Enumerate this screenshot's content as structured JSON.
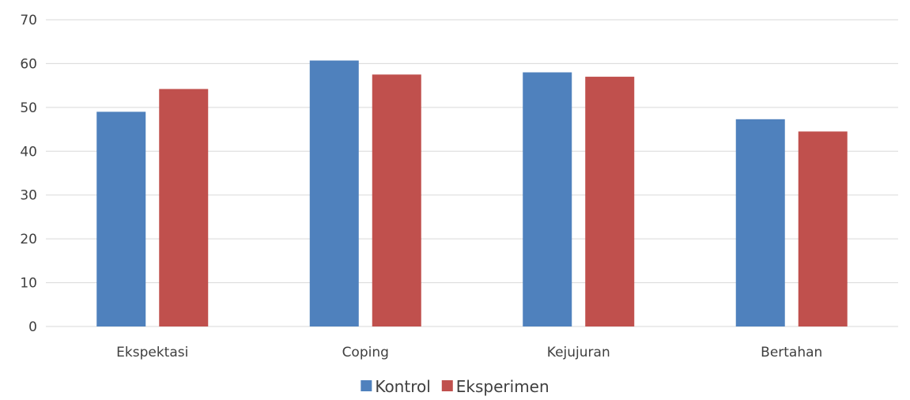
{
  "chart_data": {
    "type": "bar",
    "categories": [
      "Ekspektasi",
      "Coping",
      "Kejujuran",
      "Bertahan"
    ],
    "series": [
      {
        "name": "Kontrol",
        "values": [
          49,
          60.7,
          58,
          47.3
        ],
        "color": "#4F81BD"
      },
      {
        "name": "Eksperimen",
        "values": [
          54.2,
          57.5,
          57,
          44.5
        ],
        "color": "#C0504D"
      }
    ],
    "yticks": [
      "0",
      "10",
      "20",
      "30",
      "40",
      "50",
      "60",
      "70"
    ],
    "ylim": [
      0,
      70
    ],
    "grid": true,
    "legend_position": "bottom",
    "gridline_color": "#D9D9D9"
  }
}
